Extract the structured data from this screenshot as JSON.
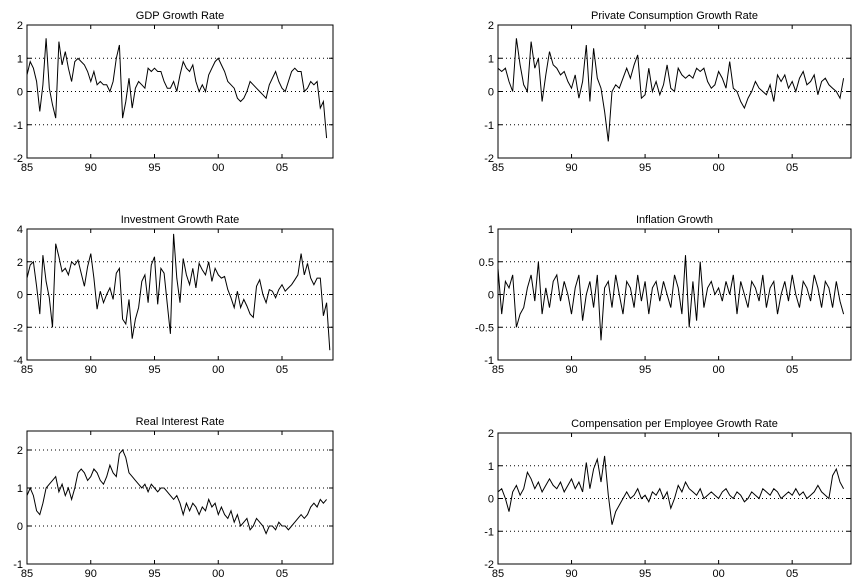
{
  "chart_data": [
    {
      "type": "line",
      "title": "GDP Growth Rate",
      "xlim": [
        1985,
        2009
      ],
      "ylim": [
        -2,
        2
      ],
      "xticks": [
        1985,
        1990,
        1995,
        2000,
        2005
      ],
      "xtick_labels": [
        "85",
        "90",
        "95",
        "00",
        "05"
      ],
      "yticks": [
        -2,
        -1,
        0,
        1,
        2
      ],
      "ytick_labels": [
        "-2",
        "-1",
        "0",
        "1",
        "2"
      ],
      "grid_y": [
        -1,
        0,
        1
      ],
      "x_start": 1985,
      "x_step": 0.25,
      "values": [
        0.5,
        0.9,
        0.7,
        0.3,
        -0.6,
        0.2,
        1.6,
        0.1,
        -0.4,
        -0.8,
        1.5,
        0.8,
        1.2,
        0.7,
        0.3,
        0.9,
        1.0,
        0.9,
        0.8,
        0.6,
        0.3,
        0.6,
        0.2,
        0.3,
        0.2,
        0.2,
        0.0,
        0.3,
        1.0,
        1.4,
        -0.8,
        -0.3,
        0.4,
        -0.5,
        0.1,
        0.3,
        0.2,
        0.1,
        0.7,
        0.6,
        0.7,
        0.6,
        0.6,
        0.3,
        0.1,
        0.1,
        0.3,
        0.0,
        0.5,
        0.9,
        0.7,
        0.6,
        0.8,
        0.3,
        0.0,
        0.2,
        0.0,
        0.5,
        0.7,
        0.9,
        1.0,
        0.8,
        0.6,
        0.3,
        0.2,
        0.1,
        -0.2,
        -0.3,
        -0.2,
        0.0,
        0.3,
        0.2,
        0.1,
        0.0,
        -0.1,
        -0.2,
        0.2,
        0.4,
        0.6,
        0.3,
        0.1,
        0.0,
        0.3,
        0.6,
        0.7,
        0.6,
        0.6,
        0.0,
        0.1,
        0.3,
        0.2,
        0.3,
        -0.5,
        -0.3,
        -1.4
      ]
    },
    {
      "type": "line",
      "title": "Private Consumption Growth Rate",
      "xlim": [
        1985,
        2009
      ],
      "ylim": [
        -2,
        2
      ],
      "xticks": [
        1985,
        1990,
        1995,
        2000,
        2005
      ],
      "xtick_labels": [
        "85",
        "90",
        "95",
        "00",
        "05"
      ],
      "yticks": [
        -2,
        -1,
        0,
        1,
        2
      ],
      "ytick_labels": [
        "-2",
        "-1",
        "0",
        "1",
        "2"
      ],
      "grid_y": [
        -1,
        0,
        1
      ],
      "x_start": 1985,
      "x_step": 0.25,
      "values": [
        0.7,
        0.6,
        0.7,
        0.3,
        0.0,
        1.6,
        0.8,
        0.2,
        0.0,
        1.5,
        0.7,
        1.0,
        -0.3,
        0.5,
        1.2,
        0.8,
        0.7,
        0.5,
        0.6,
        0.3,
        0.1,
        0.5,
        -0.2,
        0.3,
        1.4,
        -0.3,
        1.3,
        0.4,
        0.1,
        -0.6,
        -1.5,
        0.0,
        0.2,
        0.1,
        0.4,
        0.7,
        0.4,
        0.8,
        1.1,
        -0.2,
        -0.1,
        0.7,
        0.0,
        0.3,
        -0.1,
        0.2,
        0.8,
        0.1,
        0.0,
        0.7,
        0.5,
        0.4,
        0.5,
        0.4,
        0.7,
        0.6,
        0.7,
        0.3,
        0.1,
        0.2,
        0.6,
        0.4,
        0.1,
        0.9,
        0.1,
        0.0,
        -0.3,
        -0.5,
        -0.2,
        0.0,
        0.3,
        0.1,
        0.0,
        -0.1,
        0.2,
        -0.3,
        0.5,
        0.3,
        0.5,
        0.1,
        0.3,
        0.0,
        0.4,
        0.6,
        0.2,
        0.3,
        0.5,
        -0.1,
        0.3,
        0.4,
        0.2,
        0.1,
        0.0,
        -0.2,
        0.4
      ]
    },
    {
      "type": "line",
      "title": "Investment Growth Rate",
      "xlim": [
        1985,
        2009
      ],
      "ylim": [
        -4,
        4
      ],
      "xticks": [
        1985,
        1990,
        1995,
        2000,
        2005
      ],
      "xtick_labels": [
        "85",
        "90",
        "95",
        "00",
        "05"
      ],
      "yticks": [
        -4,
        -2,
        0,
        2,
        4
      ],
      "ytick_labels": [
        "-4",
        "-2",
        "0",
        "2",
        "4"
      ],
      "grid_y": [
        -2,
        0,
        2
      ],
      "x_start": 1985,
      "x_step": 0.25,
      "values": [
        1.0,
        1.8,
        2.0,
        0.5,
        -1.2,
        2.4,
        0.8,
        -0.2,
        -2.0,
        3.1,
        2.3,
        1.4,
        1.6,
        1.2,
        2.0,
        1.8,
        2.1,
        1.3,
        0.5,
        1.7,
        2.5,
        1.0,
        -0.9,
        0.2,
        -0.5,
        0.0,
        0.4,
        -0.3,
        1.3,
        1.6,
        -1.5,
        -1.8,
        -0.3,
        -2.7,
        -1.5,
        -0.8,
        0.8,
        1.2,
        -0.5,
        1.8,
        2.3,
        -0.6,
        1.6,
        1.3,
        -0.6,
        -2.4,
        3.7,
        1.0,
        -0.5,
        2.2,
        1.2,
        0.6,
        1.6,
        0.4,
        1.9,
        1.5,
        1.2,
        2.0,
        0.8,
        1.6,
        1.2,
        1.0,
        1.1,
        0.3,
        -0.2,
        -0.8,
        0.2,
        -0.8,
        -0.3,
        -0.7,
        -1.2,
        -1.4,
        0.5,
        0.9,
        0.0,
        -0.5,
        0.3,
        0.2,
        -0.2,
        0.3,
        0.6,
        0.2,
        0.4,
        0.6,
        0.9,
        1.2,
        2.5,
        1.2,
        1.9,
        1.0,
        0.6,
        1.0,
        1.0,
        -1.3,
        -0.5,
        -3.4
      ]
    },
    {
      "type": "line",
      "title": "Inflation Growth",
      "xlim": [
        1985,
        2009
      ],
      "ylim": [
        -1,
        1
      ],
      "xticks": [
        1985,
        1990,
        1995,
        2000,
        2005
      ],
      "xtick_labels": [
        "85",
        "90",
        "95",
        "00",
        "05"
      ],
      "yticks": [
        -1,
        -0.5,
        0,
        0.5,
        1
      ],
      "ytick_labels": [
        "-1",
        "-0.5",
        "0",
        "0.5",
        "1"
      ],
      "grid_y": [
        -0.5,
        0,
        0.5
      ],
      "x_start": 1985,
      "x_step": 0.25,
      "values": [
        0.4,
        -0.3,
        0.2,
        0.1,
        0.3,
        -0.5,
        -0.3,
        -0.2,
        0.1,
        0.3,
        -0.1,
        0.5,
        -0.3,
        0.1,
        -0.2,
        0.2,
        0.3,
        -0.1,
        0.2,
        0.0,
        -0.3,
        0.1,
        0.3,
        -0.4,
        0.0,
        0.2,
        -0.2,
        0.3,
        -0.7,
        0.1,
        0.2,
        -0.2,
        0.3,
        0.0,
        -0.3,
        0.2,
        0.1,
        -0.2,
        0.3,
        -0.1,
        0.2,
        -0.3,
        0.1,
        0.2,
        -0.1,
        0.2,
        0.0,
        -0.2,
        0.3,
        0.1,
        -0.3,
        0.6,
        -0.5,
        0.2,
        -0.4,
        0.5,
        -0.2,
        0.1,
        0.2,
        0.0,
        0.1,
        -0.1,
        0.2,
        0.0,
        0.3,
        -0.3,
        0.2,
        0.0,
        -0.2,
        0.2,
        0.1,
        -0.1,
        0.3,
        -0.2,
        0.1,
        0.2,
        -0.3,
        0.0,
        0.2,
        -0.1,
        0.3,
        0.0,
        -0.2,
        0.2,
        0.1,
        -0.1,
        0.3,
        0.1,
        -0.2,
        0.2,
        0.1,
        -0.2,
        0.2,
        -0.1,
        -0.3
      ]
    },
    {
      "type": "line",
      "title": "Real Interest Rate",
      "xlim": [
        1985,
        2009
      ],
      "ylim": [
        -1,
        2.5
      ],
      "xticks": [
        1985,
        1990,
        1995,
        2000,
        2005
      ],
      "xtick_labels": [
        "85",
        "90",
        "95",
        "00",
        "05"
      ],
      "yticks": [
        -1,
        0,
        1,
        2
      ],
      "ytick_labels": [
        "-1",
        "0",
        "1",
        "2"
      ],
      "grid_y": [
        0,
        1,
        2
      ],
      "x_start": 1985,
      "x_step": 0.25,
      "values": [
        0.8,
        1.0,
        0.8,
        0.4,
        0.3,
        0.6,
        1.0,
        1.1,
        1.2,
        1.3,
        0.9,
        1.1,
        0.8,
        1.0,
        0.7,
        1.0,
        1.4,
        1.5,
        1.4,
        1.2,
        1.3,
        1.5,
        1.4,
        1.2,
        1.1,
        1.3,
        1.6,
        1.4,
        1.3,
        1.9,
        2.0,
        1.8,
        1.4,
        1.3,
        1.2,
        1.1,
        1.0,
        1.1,
        0.9,
        1.1,
        1.0,
        0.9,
        1.0,
        1.0,
        0.9,
        0.8,
        0.7,
        0.8,
        0.6,
        0.3,
        0.6,
        0.4,
        0.6,
        0.5,
        0.3,
        0.5,
        0.4,
        0.7,
        0.5,
        0.6,
        0.3,
        0.5,
        0.3,
        0.2,
        0.4,
        0.1,
        0.3,
        0.0,
        0.1,
        0.2,
        -0.1,
        0.0,
        0.2,
        0.1,
        0.0,
        -0.2,
        0.0,
        0.0,
        -0.1,
        0.1,
        0.0,
        0.0,
        -0.1,
        0.0,
        0.1,
        0.2,
        0.3,
        0.2,
        0.3,
        0.5,
        0.6,
        0.5,
        0.7,
        0.6,
        0.7
      ]
    },
    {
      "type": "line",
      "title": "Compensation per Employee Growth Rate",
      "xlim": [
        1985,
        2009
      ],
      "ylim": [
        -2,
        2
      ],
      "xticks": [
        1985,
        1990,
        1995,
        2000,
        2005
      ],
      "xtick_labels": [
        "85",
        "90",
        "95",
        "00",
        "05"
      ],
      "yticks": [
        -2,
        -1,
        0,
        1,
        2
      ],
      "ytick_labels": [
        "-2",
        "-1",
        "0",
        "1",
        "2"
      ],
      "grid_y": [
        -1,
        0,
        1
      ],
      "x_start": 1985,
      "x_step": 0.25,
      "values": [
        0.2,
        0.3,
        0.0,
        -0.4,
        0.2,
        0.4,
        0.1,
        0.3,
        0.8,
        0.6,
        0.3,
        0.5,
        0.2,
        0.4,
        0.6,
        0.4,
        0.3,
        0.5,
        0.2,
        0.4,
        0.6,
        0.3,
        0.5,
        0.2,
        1.1,
        0.3,
        0.9,
        1.2,
        0.5,
        1.3,
        0.1,
        -0.8,
        -0.4,
        -0.2,
        0.0,
        0.2,
        0.0,
        0.1,
        0.3,
        0.0,
        0.1,
        -0.1,
        0.2,
        0.1,
        0.3,
        0.0,
        0.2,
        -0.3,
        0.0,
        0.4,
        0.2,
        0.5,
        0.3,
        0.2,
        0.1,
        0.3,
        0.0,
        0.1,
        0.2,
        0.1,
        0.0,
        0.2,
        0.3,
        0.1,
        0.0,
        0.2,
        0.1,
        -0.1,
        0.0,
        0.2,
        0.1,
        0.0,
        0.3,
        0.2,
        0.1,
        0.3,
        0.2,
        0.0,
        0.1,
        0.2,
        0.1,
        0.3,
        0.1,
        0.2,
        0.0,
        0.1,
        0.2,
        0.4,
        0.2,
        0.1,
        0.0,
        0.7,
        0.9,
        0.5,
        0.3
      ]
    }
  ]
}
